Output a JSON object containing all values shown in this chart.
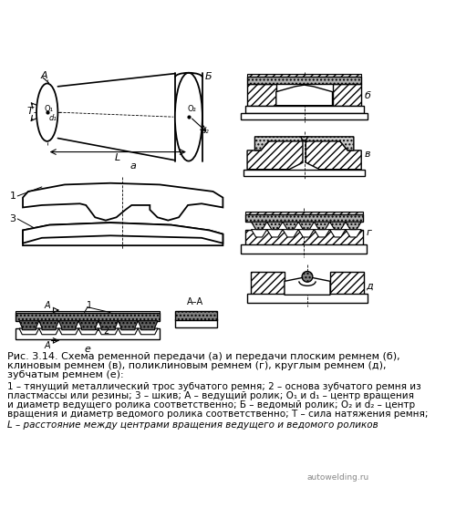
{
  "bg_color": "#ffffff",
  "line_color": "#000000",
  "caption_line1": "Рис. 3.14. Схема ременной передачи (а) и передачи плоским ремнем (б),",
  "caption_line2": "клиновым ремнем (в), поликлиновым ремнем (г), круглым ремнем (д),",
  "caption_line3": "зубчатым ремнем (е):",
  "caption_line4": "1 – тянущий металлический трос зубчатого ремня; 2 – основа зубчатого ремня из",
  "caption_line5": "пластмассы или резины; 3 – шкив; А – ведущий ролик; O₁ и d₁ – центр вращения",
  "caption_line6": "и диаметр ведущего ролика соответственно; Б – ведомый ролик; O₂ и d₂ – центр",
  "caption_line7": "вращения и диаметр ведомого ролика соответственно; T – сила натяжения ремня;",
  "caption_line8": "L – расстояние между центрами вращения ведущего и ведомого роликов",
  "watermark": "autowelding.ru"
}
